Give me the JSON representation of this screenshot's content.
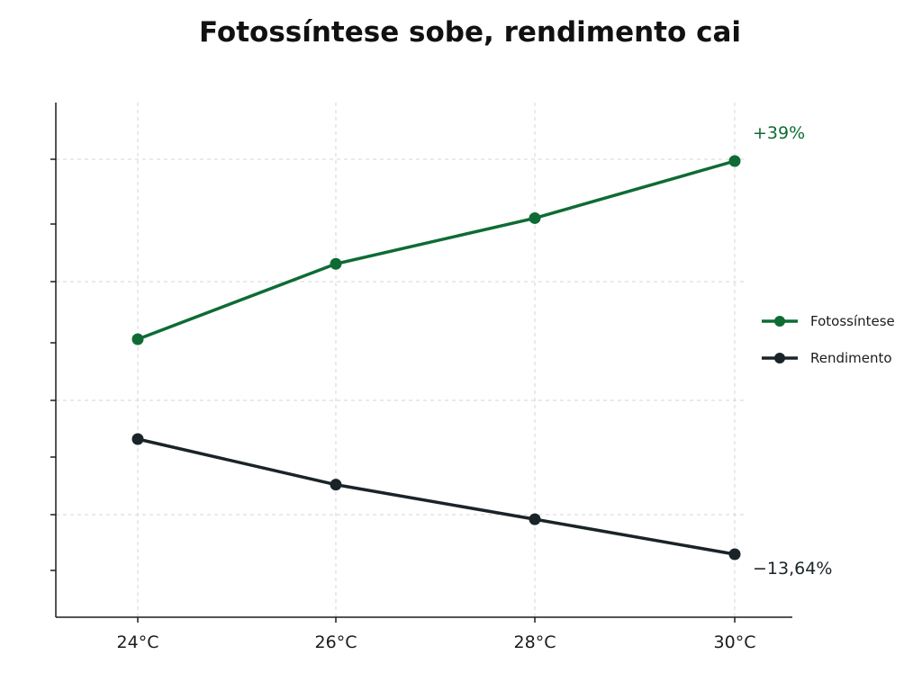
{
  "title": "Fotossíntese sobe, rendimento cai",
  "chart_data": {
    "type": "line",
    "title": "Fotossíntese sobe, rendimento cai",
    "xlabel": "",
    "ylabel": "",
    "categories": [
      "24°C",
      "26°C",
      "28°C",
      "30°C"
    ],
    "series": [
      {
        "name": "Fotossíntese",
        "values": [
          100,
          116.5,
          126.5,
          139
        ],
        "color": "#0f6b35",
        "end_label": "+39%"
      },
      {
        "name": "Rendimento",
        "values": [
          100,
          94.6,
          90.5,
          86.36
        ],
        "color": "#1a2428",
        "end_label": "−13,64%"
      }
    ],
    "y_scale": "independent per series (no y-axis values printed)",
    "grid": true,
    "legend": "right"
  }
}
